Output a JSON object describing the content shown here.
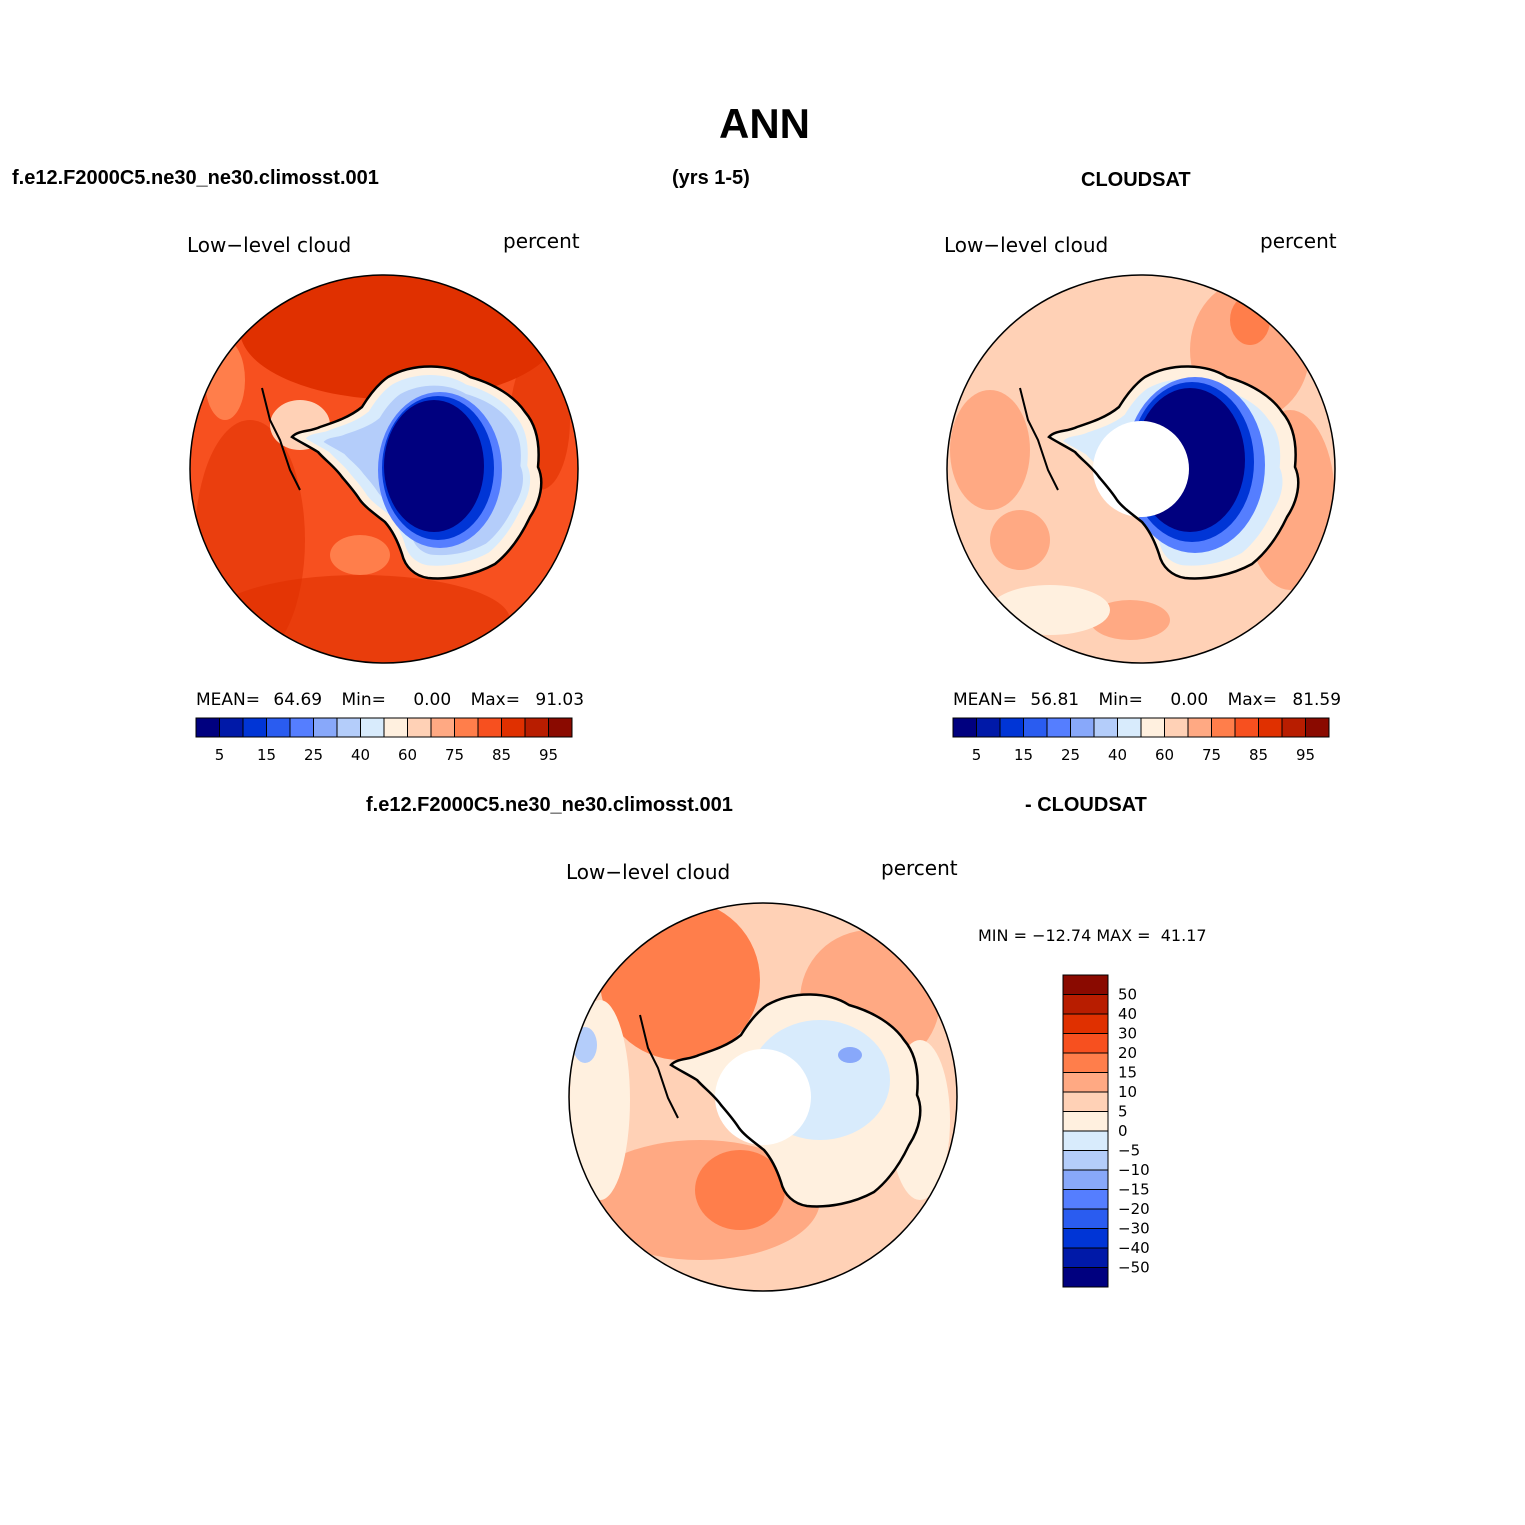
{
  "title": "ANN",
  "top_left_case": "f.e12.F2000C5.ne30_ne30.climosst.001",
  "top_years": "(yrs 1-5)",
  "top_right_obs": "CLOUDSAT",
  "bottom_case": "f.e12.F2000C5.ne30_ne30.climosst.001",
  "bottom_obs": "- CLOUDSAT",
  "panels": {
    "model": {
      "variable": "Low−level cloud",
      "units": "percent",
      "stats": {
        "mean_label": "MEAN=",
        "mean": "64.69",
        "min_label": "Min=",
        "min": "0.00",
        "max_label": "Max=",
        "max": "91.03"
      }
    },
    "obs": {
      "variable": "Low−level cloud",
      "units": "percent",
      "stats": {
        "mean_label": "MEAN=",
        "mean": "56.81",
        "min_label": "Min=",
        "min": "0.00",
        "max_label": "Max=",
        "max": "81.59"
      }
    },
    "diff": {
      "variable": "Low−level cloud",
      "units": "percent",
      "minmax": "MIN = −12.74 MAX =  41.17"
    }
  },
  "colorbar_abs": {
    "colors": [
      "#00007f",
      "#0019a8",
      "#0035d6",
      "#2a5cf0",
      "#557eff",
      "#88a8fa",
      "#b4cdfa",
      "#d8ebfc",
      "#fff0df",
      "#ffd1b6",
      "#ffa983",
      "#ff7e4b",
      "#f7501f",
      "#e03000",
      "#b81d00",
      "#8a0a00"
    ],
    "labels": [
      "5",
      "15",
      "25",
      "40",
      "60",
      "75",
      "85",
      "95"
    ]
  },
  "colorbar_diff": {
    "colors": [
      "#8a0a00",
      "#b81d00",
      "#e03000",
      "#f7501f",
      "#ff7e4b",
      "#ffa983",
      "#ffd1b6",
      "#fff0df",
      "#d8ebfc",
      "#b4cdfa",
      "#88a8fa",
      "#557eff",
      "#2a5cf0",
      "#0035d6",
      "#0019a8",
      "#00007f"
    ],
    "labels": [
      "50",
      "40",
      "30",
      "20",
      "15",
      "10",
      "5",
      "0",
      "−5",
      "−10",
      "−15",
      "−20",
      "−30",
      "−40",
      "−50"
    ]
  }
}
